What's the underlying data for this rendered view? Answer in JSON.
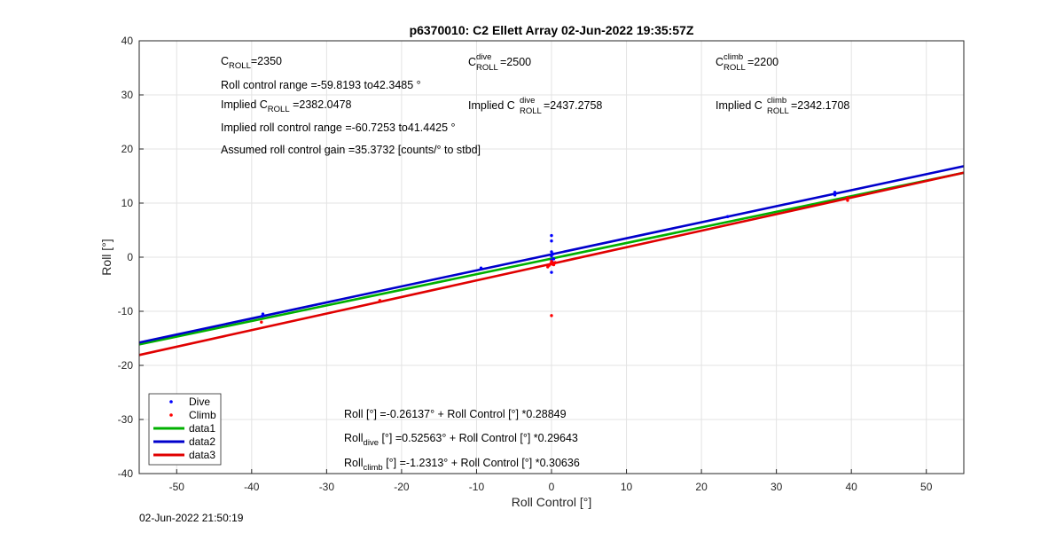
{
  "chart_data": {
    "type": "scatter",
    "title": "p6370010: C2 Ellett Array 02-Jun-2022 19:35:57Z",
    "xlabel": "Roll Control [°]",
    "ylabel": "Roll [°]",
    "xlim": [
      -55,
      55
    ],
    "ylim": [
      -40,
      40
    ],
    "xticks": [
      "-50",
      "-40",
      "-30",
      "-20",
      "-10",
      "0",
      "10",
      "20",
      "30",
      "40",
      "50"
    ],
    "yticks": [
      "-40",
      "-30",
      "-20",
      "-10",
      "0",
      "10",
      "20",
      "30",
      "40"
    ],
    "grid": true,
    "legend_position": "bottom-left",
    "series": [
      {
        "name": "Dive",
        "kind": "points",
        "color": "#0000ff",
        "x": [
          -38.5,
          -38.6,
          -9.4,
          0.0,
          0.0,
          0.0,
          0.2,
          0.0,
          0.3,
          0.1,
          0.0,
          23.5,
          37.8,
          37.8,
          0.0
        ],
        "y": [
          -10.5,
          -10.9,
          -2.0,
          4.0,
          3.0,
          1.0,
          0.6,
          0.2,
          -0.3,
          -0.9,
          -2.8,
          7.5,
          11.5,
          12.0,
          -0.5
        ]
      },
      {
        "name": "Climb",
        "kind": "points",
        "color": "#ff0000",
        "x": [
          -38.7,
          -22.9,
          -0.5,
          -0.3,
          -0.1,
          0.0,
          0.2,
          0.5,
          0.3,
          0.1,
          0.0,
          39.5,
          39.5
        ],
        "y": [
          -12.0,
          -8.0,
          -1.8,
          -1.5,
          -1.2,
          -0.8,
          -1.1,
          -1.0,
          -1.4,
          -1.3,
          -10.8,
          10.5,
          11.0
        ]
      },
      {
        "name": "data1",
        "kind": "line",
        "color": "#00b000",
        "intercept": -0.26137,
        "slope": 0.28849
      },
      {
        "name": "data2",
        "kind": "line",
        "color": "#0000cc",
        "intercept": 0.52563,
        "slope": 0.29643
      },
      {
        "name": "data3",
        "kind": "line",
        "color": "#e00000",
        "intercept": -1.2313,
        "slope": 0.30636
      }
    ],
    "annotations": {
      "c_roll": {
        "main": "C",
        "sub": "ROLL",
        "value": "=2350"
      },
      "c_roll_dive": {
        "main": "C",
        "sup": "dive",
        "sub": "ROLL",
        "value": " =2500"
      },
      "c_roll_climb": {
        "main": "C",
        "sup": "climb",
        "sub": "ROLL",
        "value": " =2200"
      },
      "roll_control_range": "Roll control range =-59.8193 to42.3485 °",
      "implied_c_roll": {
        "prefix": "Implied C",
        "sub": "ROLL",
        "value": " =2382.0478"
      },
      "implied_c_roll_dive": {
        "prefix": "Implied C",
        "sup": "dive",
        "sub": "ROLL",
        "value": " =2437.2758"
      },
      "implied_c_roll_climb": {
        "prefix": "Implied C",
        "sup": "climb",
        "sub": "ROLL",
        "value": " =2342.1708"
      },
      "implied_range": "Implied roll control range =-60.7253 to41.4425 °",
      "gain": "Assumed roll control gain =35.3732 [counts/° to stbd]",
      "fit_all": "Roll [°] =-0.26137° + Roll Control [°] *0.28849",
      "fit_dive": {
        "prefix": "Roll",
        "sub": "dive",
        "rest": " [°] =0.52563° + Roll Control [°] *0.29643"
      },
      "fit_climb": {
        "prefix": "Roll",
        "sub": "climb",
        "rest": " [°] =-1.2313° + Roll Control [°] *0.30636"
      }
    }
  },
  "timestamp": "02-Jun-2022 21:50:19"
}
